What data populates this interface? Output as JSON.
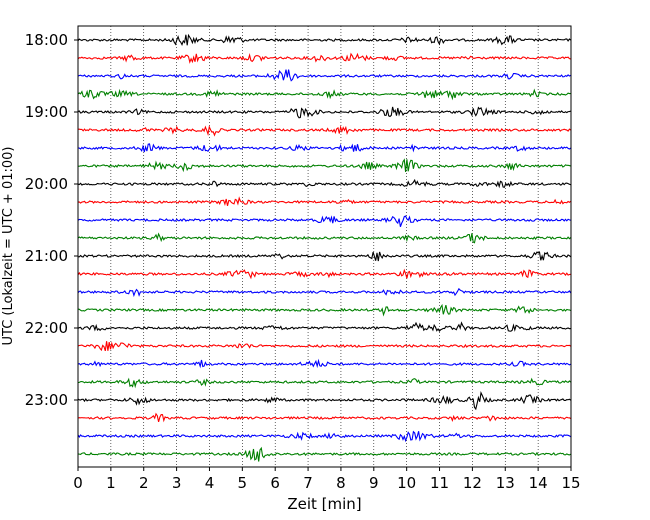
{
  "chart_data": {
    "type": "line",
    "title": "",
    "xlabel": "Zeit  [min]",
    "ylabel": "UTC (Lokalzeit = UTC + 01:00)",
    "xlim": [
      0,
      15
    ],
    "x_ticks": [
      "0",
      "1",
      "2",
      "3",
      "4",
      "5",
      "6",
      "7",
      "8",
      "9",
      "10",
      "11",
      "12",
      "13",
      "14",
      "15"
    ],
    "y_ticks": [
      {
        "label": "18:00",
        "row": 0
      },
      {
        "label": "19:00",
        "row": 4
      },
      {
        "label": "20:00",
        "row": 8
      },
      {
        "label": "21:00",
        "row": 12
      },
      {
        "label": "22:00",
        "row": 16
      },
      {
        "label": "23:00",
        "row": 20
      }
    ],
    "row_interval_min": 15,
    "row_count": 24,
    "row_colors": [
      "#000000",
      "#ff0000",
      "#0000ff",
      "#008000"
    ],
    "vertical_grid": "dotted at each minute",
    "series": [
      {
        "start": "18:00",
        "color": "#000000"
      },
      {
        "start": "18:15",
        "color": "#ff0000"
      },
      {
        "start": "18:30",
        "color": "#0000ff"
      },
      {
        "start": "18:45",
        "color": "#008000"
      },
      {
        "start": "19:00",
        "color": "#000000"
      },
      {
        "start": "19:15",
        "color": "#ff0000"
      },
      {
        "start": "19:30",
        "color": "#0000ff"
      },
      {
        "start": "19:45",
        "color": "#008000"
      },
      {
        "start": "20:00",
        "color": "#000000"
      },
      {
        "start": "20:15",
        "color": "#ff0000"
      },
      {
        "start": "20:30",
        "color": "#0000ff"
      },
      {
        "start": "20:45",
        "color": "#008000"
      },
      {
        "start": "21:00",
        "color": "#000000"
      },
      {
        "start": "21:15",
        "color": "#ff0000"
      },
      {
        "start": "21:30",
        "color": "#0000ff"
      },
      {
        "start": "21:45",
        "color": "#008000"
      },
      {
        "start": "22:00",
        "color": "#000000"
      },
      {
        "start": "22:15",
        "color": "#ff0000"
      },
      {
        "start": "22:30",
        "color": "#0000ff"
      },
      {
        "start": "22:45",
        "color": "#008000"
      },
      {
        "start": "23:00",
        "color": "#000000"
      },
      {
        "start": "23:15",
        "color": "#ff0000"
      },
      {
        "start": "23:30",
        "color": "#0000ff"
      },
      {
        "start": "23:45",
        "color": "#008000"
      }
    ]
  }
}
